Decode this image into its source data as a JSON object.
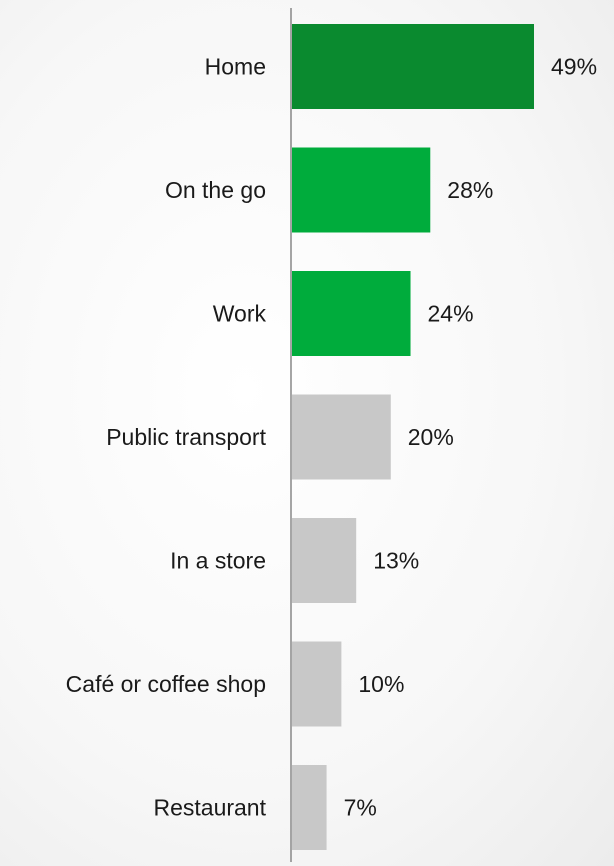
{
  "chart_data": {
    "type": "bar",
    "orientation": "horizontal",
    "categories": [
      "Home",
      "On the go",
      "Work",
      "Public transport",
      "In a store",
      "Café or coffee shop",
      "Restaurant"
    ],
    "values": [
      49,
      28,
      24,
      20,
      13,
      10,
      7
    ],
    "value_labels": [
      "49%",
      "28%",
      "24%",
      "20%",
      "13%",
      "10%",
      "7%"
    ],
    "bar_colors": [
      "#0a8a2f",
      "#00ac3c",
      "#00ac3c",
      "#c8c8c8",
      "#c8c8c8",
      "#c8c8c8",
      "#c8c8c8"
    ],
    "axis_color": "#888888",
    "xlim": [
      0,
      49
    ],
    "grid": false,
    "legend": "none"
  }
}
